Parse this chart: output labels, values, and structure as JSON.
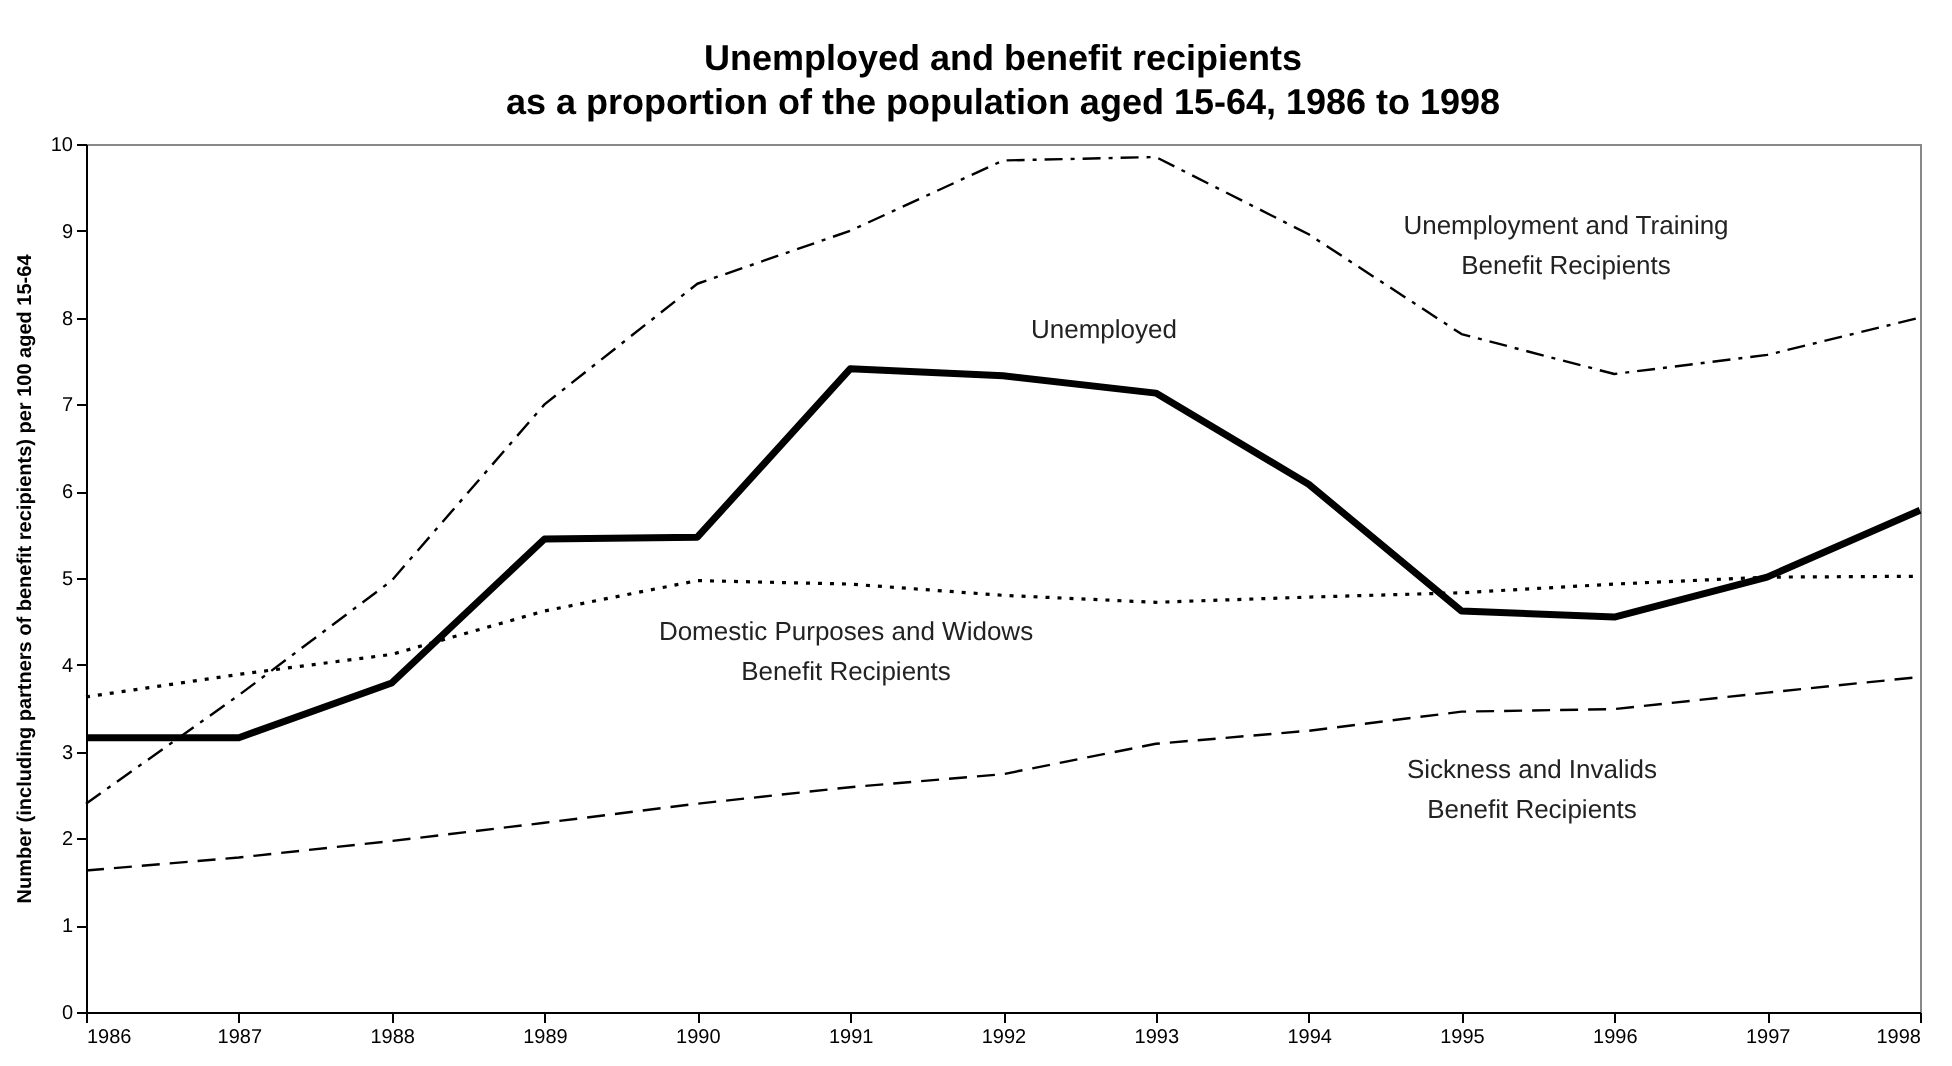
{
  "chart_data": {
    "type": "line",
    "title": "Unemployed and benefit recipients\nas a proportion of the population aged 15-64, 1986 to 1998",
    "ylabel": "Number (including partners of benefit recipients) per 100 aged 15-64",
    "x": [
      1986,
      1987,
      1988,
      1989,
      1990,
      1991,
      1992,
      1993,
      1994,
      1995,
      1996,
      1997,
      1998
    ],
    "xlim": [
      1986,
      1998
    ],
    "xticks": [
      1986,
      1987,
      1988,
      1989,
      1990,
      1991,
      1992,
      1993,
      1994,
      1995,
      1996,
      1997,
      1998
    ],
    "ylim": [
      0,
      10
    ],
    "yticks": [
      0,
      1,
      2,
      3,
      4,
      5,
      6,
      7,
      8,
      9,
      10
    ],
    "grid": false,
    "legend": false,
    "series": [
      {
        "name": "Unemployment and Training\nBenefit Recipients",
        "color": "#000000",
        "line_style": "dashdot",
        "values": [
          2.4,
          3.65,
          4.97,
          7.0,
          8.39,
          9.0,
          9.81,
          9.85,
          8.96,
          7.81,
          7.35,
          7.57,
          8.0
        ]
      },
      {
        "name": "Unemployed",
        "color": "#000000",
        "line_style": "solid",
        "values": [
          3.16,
          3.16,
          3.79,
          5.45,
          5.47,
          7.41,
          7.33,
          7.13,
          6.08,
          4.62,
          4.55,
          5.01,
          5.78
        ]
      },
      {
        "name": "Domestic Purposes and Widows\nBenefit Recipients",
        "color": "#000000",
        "line_style": "dotted",
        "values": [
          3.63,
          3.89,
          4.12,
          4.62,
          4.97,
          4.93,
          4.8,
          4.72,
          4.78,
          4.83,
          4.93,
          5.01,
          5.02
        ]
      },
      {
        "name": "Sickness and Invalids\nBenefit Recipients",
        "color": "#000000",
        "line_style": "dashed",
        "values": [
          1.63,
          1.78,
          1.97,
          2.18,
          2.4,
          2.59,
          2.74,
          3.09,
          3.24,
          3.46,
          3.49,
          3.68,
          3.86
        ]
      }
    ]
  }
}
